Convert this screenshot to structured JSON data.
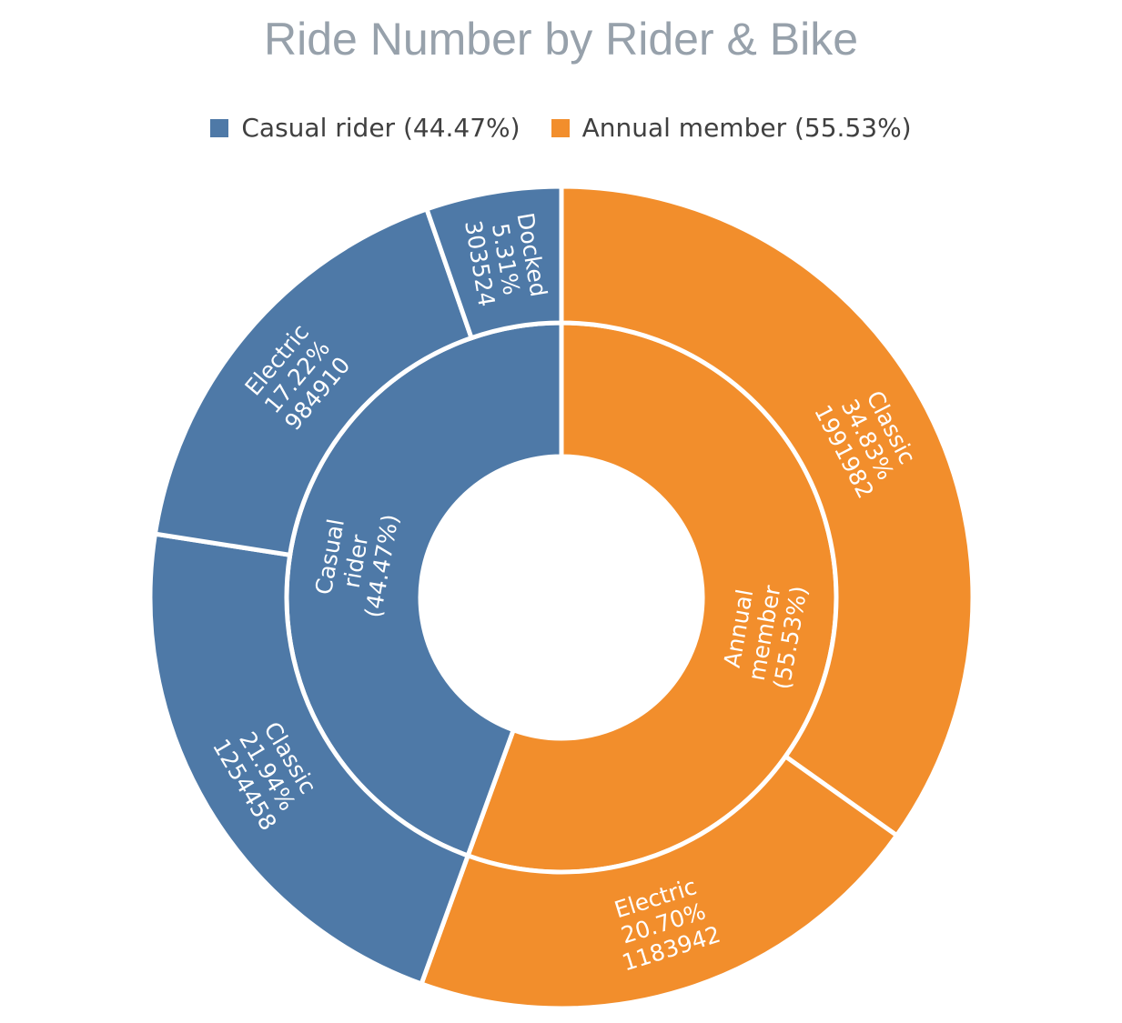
{
  "chart_data": {
    "type": "sunburst",
    "title": "Ride Number by Rider & Bike",
    "legend_position": "top",
    "inner_ring": [
      {
        "name": "Casual rider",
        "share": 44.47,
        "color": "#4e79a7",
        "label_lines": [
          "Casual",
          "rider",
          "(44.47%)"
        ]
      },
      {
        "name": "Annual member",
        "share": 55.53,
        "color": "#f28e2c",
        "label_lines": [
          "Annual",
          "member",
          "(55.53%)"
        ]
      }
    ],
    "outer_ring": [
      {
        "parent": "Annual member",
        "name": "Classic",
        "share": 34.83,
        "value": 1991982,
        "color": "#f28e2c",
        "label_lines": [
          "Classic",
          "34.83%",
          "1991982"
        ]
      },
      {
        "parent": "Annual member",
        "name": "Electric",
        "share": 20.7,
        "value": 1183942,
        "color": "#f28e2c",
        "label_lines": [
          "Electric",
          "20.70%",
          "1183942"
        ]
      },
      {
        "parent": "Casual rider",
        "name": "Classic",
        "share": 21.94,
        "value": 1254458,
        "color": "#4e79a7",
        "label_lines": [
          "Classic",
          "21.94%",
          "1254458"
        ]
      },
      {
        "parent": "Casual rider",
        "name": "Electric",
        "share": 17.22,
        "value": 984910,
        "color": "#4e79a7",
        "label_lines": [
          "Electric",
          "17.22%",
          "984910"
        ]
      },
      {
        "parent": "Casual rider",
        "name": "Docked",
        "share": 5.31,
        "value": 303524,
        "color": "#4e79a7",
        "label_lines": [
          "Docked",
          "5.31%",
          "303524"
        ]
      }
    ],
    "legend": [
      {
        "label": "Casual rider (44.47%)",
        "color": "#4e79a7"
      },
      {
        "label": "Annual member (55.53%)",
        "color": "#f28e2c"
      }
    ]
  }
}
